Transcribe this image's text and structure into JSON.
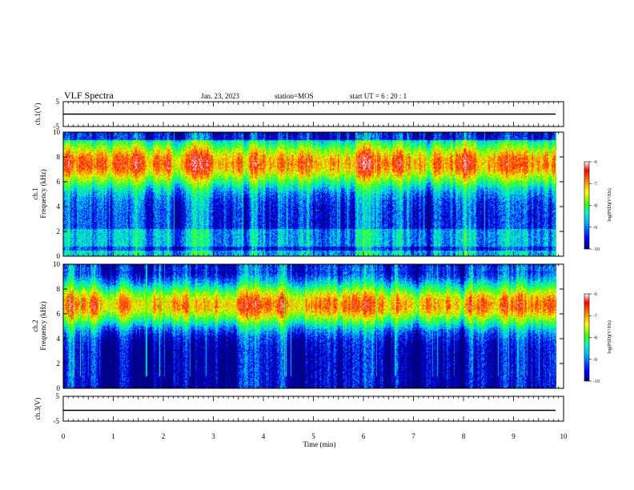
{
  "header": {
    "title": "VLF Spectra",
    "date": "Jan. 23, 2023",
    "station": "station=MOS",
    "start": "start UT =  6 : 20 : 1"
  },
  "colors": {
    "scale": [
      "#000080",
      "#0000ff",
      "#00b0ff",
      "#00ffc0",
      "#40ff00",
      "#ffff00",
      "#ff8000",
      "#ff0000",
      "#ffffff"
    ]
  },
  "chart_data": [
    {
      "type": "line",
      "panel": "ch1-voltage",
      "ylabel": "ch.1(V)",
      "ylim": [
        -5,
        5
      ],
      "yticks": [
        "5",
        "-5"
      ],
      "x": [
        0,
        9.85
      ],
      "y": [
        0,
        0
      ]
    },
    {
      "type": "heatmap",
      "panel": "ch1-spectrogram",
      "ylabel": "ch.1\nFrequency (kHz)",
      "ylabel_lines": [
        "ch.1",
        "Frequency (kHz)"
      ],
      "ylim": [
        0,
        10
      ],
      "yticks": [
        "0",
        "2",
        "4",
        "6",
        "8",
        "10"
      ],
      "xlim": [
        0,
        10
      ],
      "data_end_min": 9.85,
      "peak_band_khz": [
        6.0,
        9.0
      ],
      "colorbar": {
        "label": "log(PSD)(V²/Hz)",
        "range": [
          -10,
          -6
        ],
        "ticks": [
          "-6",
          "-7",
          "-8",
          "-9",
          "-10"
        ]
      }
    },
    {
      "type": "heatmap",
      "panel": "ch2-spectrogram",
      "ylabel": "ch.2\nFrequency (kHz)",
      "ylabel_lines": [
        "ch.2",
        "Frequency (kHz)"
      ],
      "ylim": [
        0,
        10
      ],
      "yticks": [
        "0",
        "2",
        "4",
        "6",
        "8",
        "10"
      ],
      "xlim": [
        0,
        10
      ],
      "data_end_min": 9.85,
      "peak_band_khz": [
        5.5,
        8.0
      ],
      "colorbar": {
        "label": "log(PSD)(V²/Hz)",
        "range": [
          -10,
          -6
        ],
        "ticks": [
          "-6",
          "-7",
          "-8",
          "-9",
          "-10"
        ]
      }
    },
    {
      "type": "line",
      "panel": "ch3-voltage",
      "ylabel": "ch.3(V)",
      "ylim": [
        -5,
        5
      ],
      "yticks": [
        "5",
        "-5"
      ],
      "x": [
        0,
        9.85
      ],
      "y": [
        0,
        0
      ],
      "xlabel": "Time (min)",
      "xlim": [
        0,
        10
      ],
      "xticks": [
        "0",
        "1",
        "2",
        "3",
        "4",
        "5",
        "6",
        "7",
        "8",
        "9",
        "10"
      ]
    }
  ]
}
